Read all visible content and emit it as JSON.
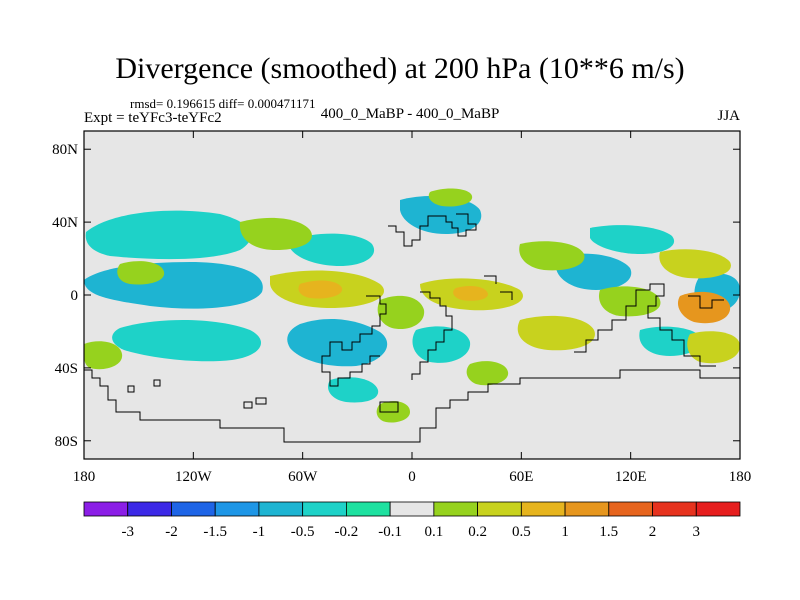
{
  "title": "Divergence (smoothed) at 200 hPa (10**6 m/s)",
  "stats": "rmsd= 0.196615 diff= 0.000471171",
  "experiment": "Expt = teYFc3-teYFc2",
  "comparison": "400_0_MaBP - 400_0_MaBP",
  "season": "JJA",
  "map": {
    "lat_range": [
      -90,
      90
    ],
    "lon_range": [
      -180,
      180
    ],
    "background_color": "#e6e6e6",
    "y_ticks": [
      {
        "label": "80N",
        "value": 80
      },
      {
        "label": "40N",
        "value": 40
      },
      {
        "label": "0",
        "value": 0
      },
      {
        "label": "40S",
        "value": -40
      },
      {
        "label": "80S",
        "value": -80
      }
    ],
    "x_ticks": [
      {
        "label": "180",
        "value": -180
      },
      {
        "label": "120W",
        "value": -120
      },
      {
        "label": "60W",
        "value": -60
      },
      {
        "label": "0",
        "value": 0
      },
      {
        "label": "60E",
        "value": 60
      },
      {
        "label": "120E",
        "value": 120
      },
      {
        "label": "180",
        "value": 180
      }
    ]
  },
  "colorbar": {
    "colors": [
      "#8b1ee6",
      "#3c28e6",
      "#1e64e6",
      "#1e96e6",
      "#1eb4d2",
      "#1ed2c8",
      "#1ee1a0",
      "#e6e6e6",
      "#96d21e",
      "#c8d21e",
      "#e6b41e",
      "#e6961e",
      "#e6641e",
      "#e6321e",
      "#e61e1e"
    ],
    "labels": [
      "-3",
      "-2",
      "-1.5",
      "-1",
      "-0.5",
      "-0.2",
      "-0.1",
      "0.1",
      "0.2",
      "0.5",
      "1",
      "1.5",
      "2",
      "3"
    ]
  }
}
